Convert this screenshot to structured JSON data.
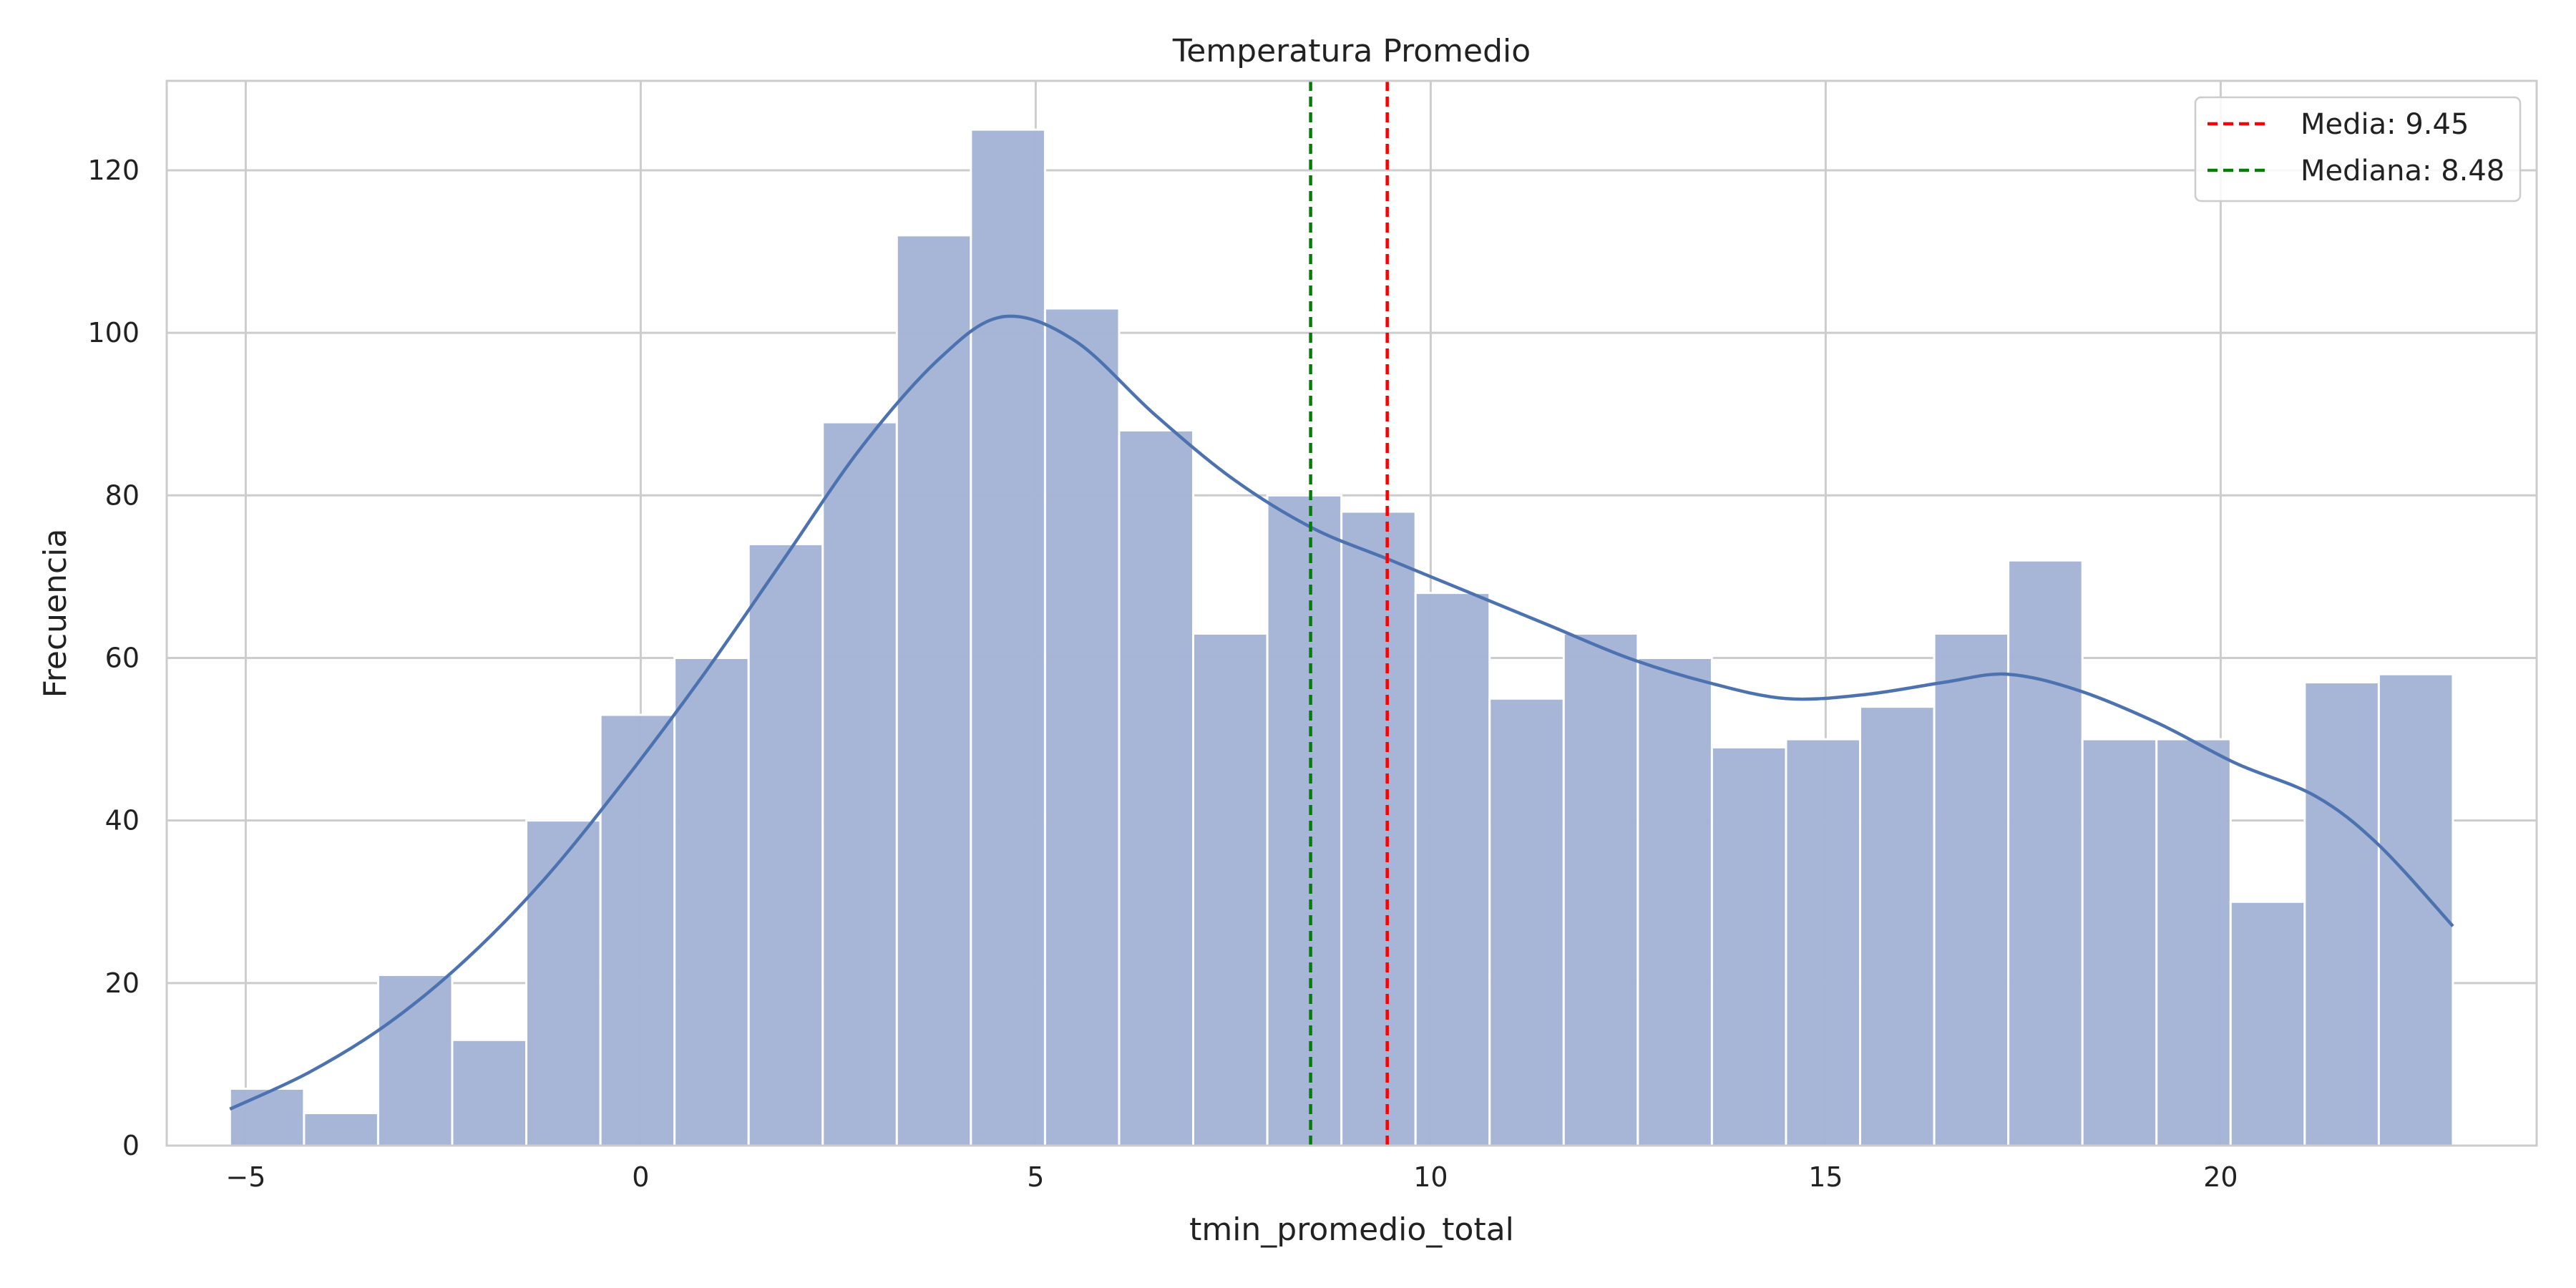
{
  "chart_data": {
    "type": "bar",
    "title": "Temperatura Promedio",
    "xlabel": "tmin_promedio_total",
    "ylabel": "Frecuencia",
    "xlim": [
      -6.0,
      24.0
    ],
    "ylim": [
      0,
      131
    ],
    "xticks": [
      -5,
      0,
      5,
      10,
      15,
      20
    ],
    "xtick_labels": [
      "−5",
      "0",
      "5",
      "10",
      "15",
      "20"
    ],
    "yticks": [
      0,
      20,
      40,
      60,
      80,
      100,
      120
    ],
    "ytick_labels": [
      "0",
      "20",
      "40",
      "60",
      "80",
      "100",
      "120"
    ],
    "grid": true,
    "legend_position": "top-right",
    "bins": {
      "edges": [
        -5.2,
        -4.262,
        -3.324,
        -2.386,
        -1.448,
        -0.51,
        0.428,
        1.366,
        2.304,
        3.242,
        4.18,
        5.118,
        6.056,
        6.994,
        7.932,
        8.87,
        9.808,
        10.746,
        11.684,
        12.622,
        13.56,
        14.498,
        15.436,
        16.374,
        17.312,
        18.25,
        19.188,
        20.126,
        21.064,
        22.002,
        22.94
      ],
      "counts": [
        7,
        4,
        21,
        13,
        40,
        53,
        60,
        74,
        89,
        112,
        125,
        103,
        88,
        63,
        80,
        78,
        68,
        55,
        63,
        60,
        49,
        50,
        54,
        63,
        72,
        50,
        50,
        30,
        57,
        58
      ],
      "color": "#a5b5d6"
    },
    "kde": {
      "x": [
        -5.2,
        -4.2,
        -3.2,
        -2.2,
        -1.2,
        -0.2,
        0.8,
        1.8,
        2.8,
        3.8,
        4.6,
        5.5,
        6.5,
        7.5,
        8.5,
        9.5,
        10.5,
        11.5,
        12.5,
        13.5,
        14.5,
        15.5,
        16.5,
        17.3,
        18.2,
        19.2,
        20.2,
        21.2,
        22.0,
        22.94
      ],
      "y": [
        4.5,
        9,
        15,
        23,
        33,
        45,
        58,
        72,
        86,
        97,
        102,
        99,
        90,
        82,
        76,
        72,
        68,
        64,
        60,
        57,
        55,
        55.5,
        57,
        58,
        56,
        52,
        47,
        43,
        37,
        27
      ],
      "color": "#4c72b0"
    },
    "vlines": [
      {
        "label": "Media: 9.45",
        "x": 9.45,
        "color": "#ff0000"
      },
      {
        "label": "Mediana: 8.48",
        "x": 8.48,
        "color": "#008000"
      }
    ]
  }
}
